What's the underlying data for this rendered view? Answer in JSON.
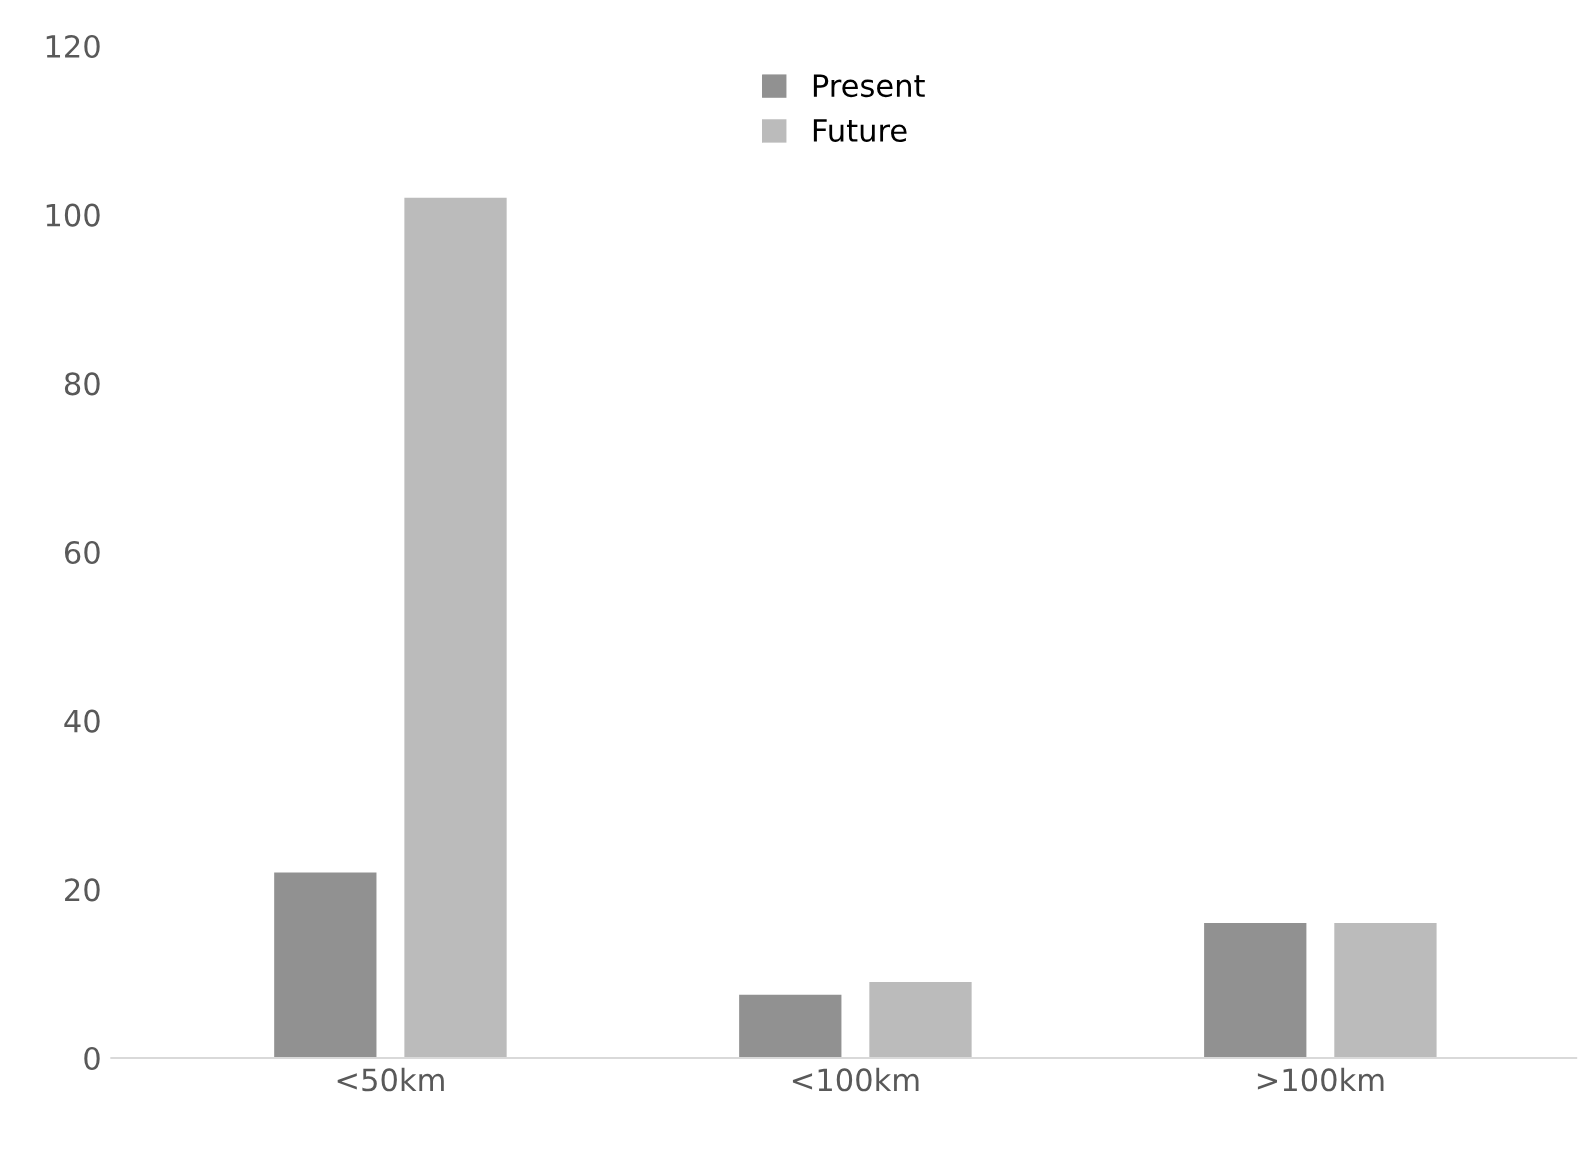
{
  "chart_data": {
    "type": "bar",
    "categories": [
      "<50km",
      "<100km",
      ">100km"
    ],
    "series": [
      {
        "name": "Present",
        "color": "#919191",
        "values": [
          22,
          7.5,
          16
        ]
      },
      {
        "name": "Future",
        "color": "#bbbbbb",
        "values": [
          102,
          9,
          16
        ]
      }
    ],
    "ylim": [
      0,
      120
    ],
    "yticks": [
      0,
      20,
      40,
      60,
      80,
      100,
      120
    ],
    "grid": false,
    "legend": "top"
  }
}
